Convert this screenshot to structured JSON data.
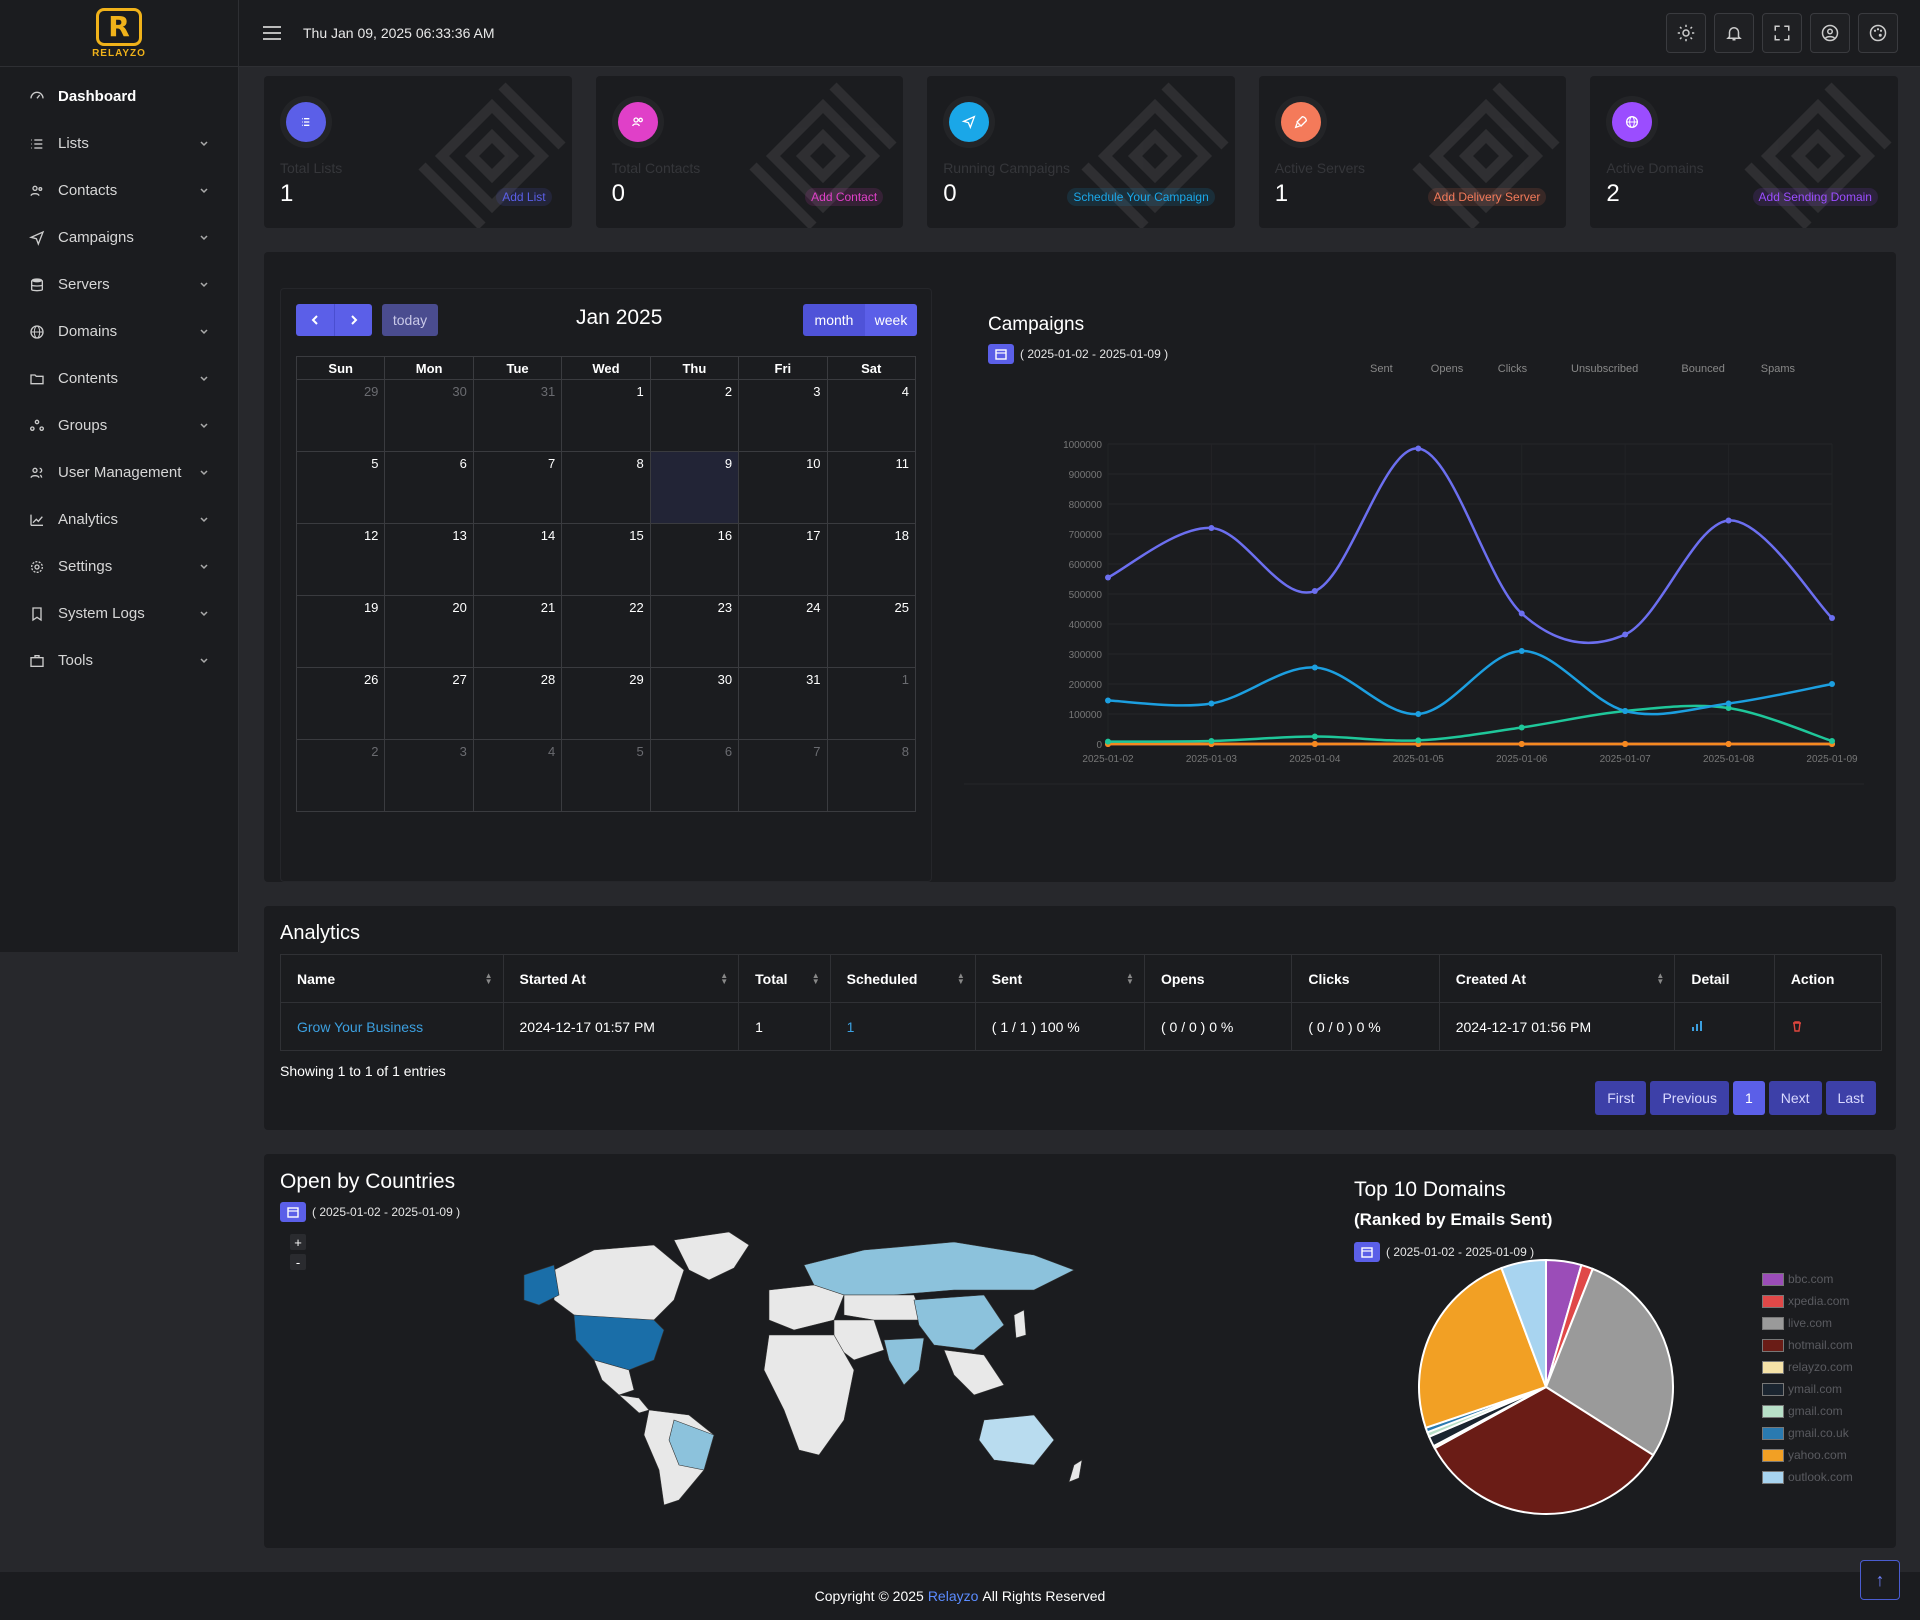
{
  "brand": {
    "logo_text": "RELAYZO",
    "logo_letter": "R"
  },
  "header": {
    "datetime": "Thu Jan 09, 2025 06:33:36 AM"
  },
  "sidebar": {
    "items": [
      {
        "label": "Dashboard",
        "icon": "dashboard-icon"
      },
      {
        "label": "Lists",
        "icon": "list-icon"
      },
      {
        "label": "Contacts",
        "icon": "contacts-icon"
      },
      {
        "label": "Campaigns",
        "icon": "send-icon"
      },
      {
        "label": "Servers",
        "icon": "database-icon"
      },
      {
        "label": "Domains",
        "icon": "globe-icon"
      },
      {
        "label": "Contents",
        "icon": "folder-icon"
      },
      {
        "label": "Groups",
        "icon": "groups-icon"
      },
      {
        "label": "User Management",
        "icon": "users-icon"
      },
      {
        "label": "Analytics",
        "icon": "analytics-icon"
      },
      {
        "label": "Settings",
        "icon": "gear-icon"
      },
      {
        "label": "System Logs",
        "icon": "bookmark-icon"
      },
      {
        "label": "Tools",
        "icon": "toolbox-icon"
      }
    ]
  },
  "stats": [
    {
      "label": "Total Lists",
      "value": "1",
      "action": "Add List",
      "color": "#5b5fe8"
    },
    {
      "label": "Total Contacts",
      "value": "0",
      "action": "Add Contact",
      "color": "#e040c8"
    },
    {
      "label": "Running Campaigns",
      "value": "0",
      "action": "Schedule Your Campaign",
      "color": "#1aa7e8"
    },
    {
      "label": "Active Servers",
      "value": "1",
      "action": "Add Delivery Server",
      "color": "#f47a5a"
    },
    {
      "label": "Active Domains",
      "value": "2",
      "action": "Add Sending Domain",
      "color": "#9b4dff"
    }
  ],
  "calendar": {
    "title": "Jan 2025",
    "today_label": "today",
    "month_label": "month",
    "week_label": "week",
    "days": [
      "Sun",
      "Mon",
      "Tue",
      "Wed",
      "Thu",
      "Fri",
      "Sat"
    ],
    "weeks": [
      [
        [
          "29",
          1
        ],
        [
          "30",
          1
        ],
        [
          "31",
          1
        ],
        [
          "1",
          0
        ],
        [
          "2",
          0
        ],
        [
          "3",
          0
        ],
        [
          "4",
          0
        ]
      ],
      [
        [
          "5",
          0
        ],
        [
          "6",
          0
        ],
        [
          "7",
          0
        ],
        [
          "8",
          0
        ],
        [
          "9",
          2
        ],
        [
          "10",
          0
        ],
        [
          "11",
          0
        ]
      ],
      [
        [
          "12",
          0
        ],
        [
          "13",
          0
        ],
        [
          "14",
          0
        ],
        [
          "15",
          0
        ],
        [
          "16",
          0
        ],
        [
          "17",
          0
        ],
        [
          "18",
          0
        ]
      ],
      [
        [
          "19",
          0
        ],
        [
          "20",
          0
        ],
        [
          "21",
          0
        ],
        [
          "22",
          0
        ],
        [
          "23",
          0
        ],
        [
          "24",
          0
        ],
        [
          "25",
          0
        ]
      ],
      [
        [
          "26",
          0
        ],
        [
          "27",
          0
        ],
        [
          "28",
          0
        ],
        [
          "29",
          0
        ],
        [
          "30",
          0
        ],
        [
          "31",
          0
        ],
        [
          "1",
          1
        ]
      ],
      [
        [
          "2",
          1
        ],
        [
          "3",
          1
        ],
        [
          "4",
          1
        ],
        [
          "5",
          1
        ],
        [
          "6",
          1
        ],
        [
          "7",
          1
        ],
        [
          "8",
          1
        ]
      ]
    ]
  },
  "campaigns": {
    "title": "Campaigns",
    "date_range": "( 2025-01-02 - 2025-01-09 )"
  },
  "chart_data": {
    "type": "line",
    "x": [
      "2025-01-02",
      "2025-01-03",
      "2025-01-04",
      "2025-01-05",
      "2025-01-06",
      "2025-01-07",
      "2025-01-08",
      "2025-01-09"
    ],
    "ylim": [
      0,
      1000000
    ],
    "yticks": [
      "0",
      "100000",
      "200000",
      "300000",
      "400000",
      "500000",
      "600000",
      "700000",
      "800000",
      "900000",
      "1000000"
    ],
    "series": [
      {
        "name": "Sent",
        "color": "#6c6ff0",
        "values": [
          555000,
          720000,
          510000,
          985000,
          435000,
          365000,
          745000,
          420000
        ]
      },
      {
        "name": "Opens",
        "color": "#1c9fe0",
        "values": [
          145000,
          135000,
          255000,
          100000,
          310000,
          110000,
          135000,
          200000
        ]
      },
      {
        "name": "Clicks",
        "color": "#1fc79a",
        "values": [
          8000,
          10000,
          25000,
          12000,
          55000,
          110000,
          120000,
          10000
        ]
      },
      {
        "name": "Unsubscribed",
        "color": "#f5891f",
        "values": [
          0,
          0,
          0,
          0,
          0,
          0,
          0,
          0
        ]
      },
      {
        "name": "Bounced",
        "color": "#e0463e",
        "values": [
          0,
          0,
          0,
          0,
          0,
          0,
          0,
          0
        ]
      },
      {
        "name": "Spams",
        "color": "#f8c8d0",
        "values": [
          0,
          0,
          0,
          0,
          0,
          0,
          0,
          0
        ]
      }
    ]
  },
  "analytics": {
    "title": "Analytics",
    "columns": [
      "Name",
      "Started At",
      "Total",
      "Scheduled",
      "Sent",
      "Opens",
      "Clicks",
      "Created At",
      "Detail",
      "Action"
    ],
    "rows": [
      {
        "name": "Grow Your Business",
        "started": "2024-12-17 01:57 PM",
        "total": "1",
        "scheduled": "1",
        "sent": "( 1 / 1 ) 100 %",
        "opens": "( 0 / 0 ) 0 %",
        "clicks": "( 0 / 0 ) 0 %",
        "created": "2024-12-17 01:56 PM"
      }
    ],
    "showing": "Showing 1 to 1 of 1 entries",
    "pager": {
      "first": "First",
      "previous": "Previous",
      "page": "1",
      "next": "Next",
      "last": "Last"
    }
  },
  "map": {
    "title": "Open by Countries",
    "date_range": "( 2025-01-02 - 2025-01-09 )",
    "zoom_in": "+",
    "zoom_out": "-"
  },
  "domains": {
    "title": "Top 10 Domains",
    "subtitle": "(Ranked by Emails Sent)",
    "date_range": "( 2025-01-02 - 2025-01-09 )",
    "slices": [
      {
        "name": "bbc.com",
        "value": 4.5,
        "color": "#9b4db8"
      },
      {
        "name": "xpedia.com",
        "value": 1.5,
        "color": "#e04848"
      },
      {
        "name": "live.com",
        "value": 28,
        "color": "#9a9a9a"
      },
      {
        "name": "hotmail.com",
        "value": 33,
        "color": "#6a1c16"
      },
      {
        "name": "relayzo.com",
        "value": 0.3,
        "color": "#f5e2a8"
      },
      {
        "name": "ymail.com",
        "value": 1.3,
        "color": "#1b2530"
      },
      {
        "name": "gmail.com",
        "value": 0.6,
        "color": "#b8e0c8"
      },
      {
        "name": "gmail.co.uk",
        "value": 0.6,
        "color": "#2a7ab0"
      },
      {
        "name": "yahoo.com",
        "value": 24.5,
        "color": "#f2a024"
      },
      {
        "name": "outlook.com",
        "value": 5.7,
        "color": "#a8d4f0"
      }
    ]
  },
  "footer": {
    "prefix": "Copyright © 2025",
    "brand": "Relayzo",
    "suffix": "All Rights Reserved"
  }
}
